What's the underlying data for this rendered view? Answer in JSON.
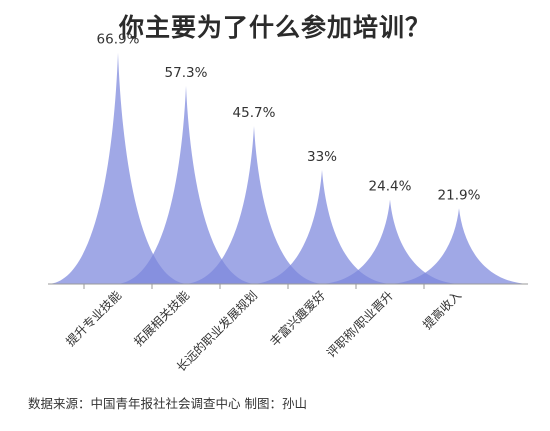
{
  "chart_data": {
    "type": "area",
    "title": "你主要为了什么参加培训？",
    "categories": [
      "提升专业技能",
      "拓展相关技能",
      "长远的职业发展规划",
      "丰富兴趣爱好",
      "评职称/职业晋升",
      "提高收入"
    ],
    "values": [
      66.9,
      57.3,
      45.7,
      33,
      24.4,
      21.9
    ],
    "value_labels": [
      "66.9%",
      "57.3%",
      "45.7%",
      "33%",
      "24.4%",
      "21.9%"
    ],
    "unit": "%",
    "ylim": [
      0,
      70
    ],
    "grid": false,
    "legend": "none"
  },
  "footer": {
    "source": "数据来源：中国青年报社社会调查中心 制图：孙山"
  },
  "colors": {
    "peak_fill": "#7b86dc",
    "axis": "#9a9a9a",
    "text": "#333333"
  }
}
